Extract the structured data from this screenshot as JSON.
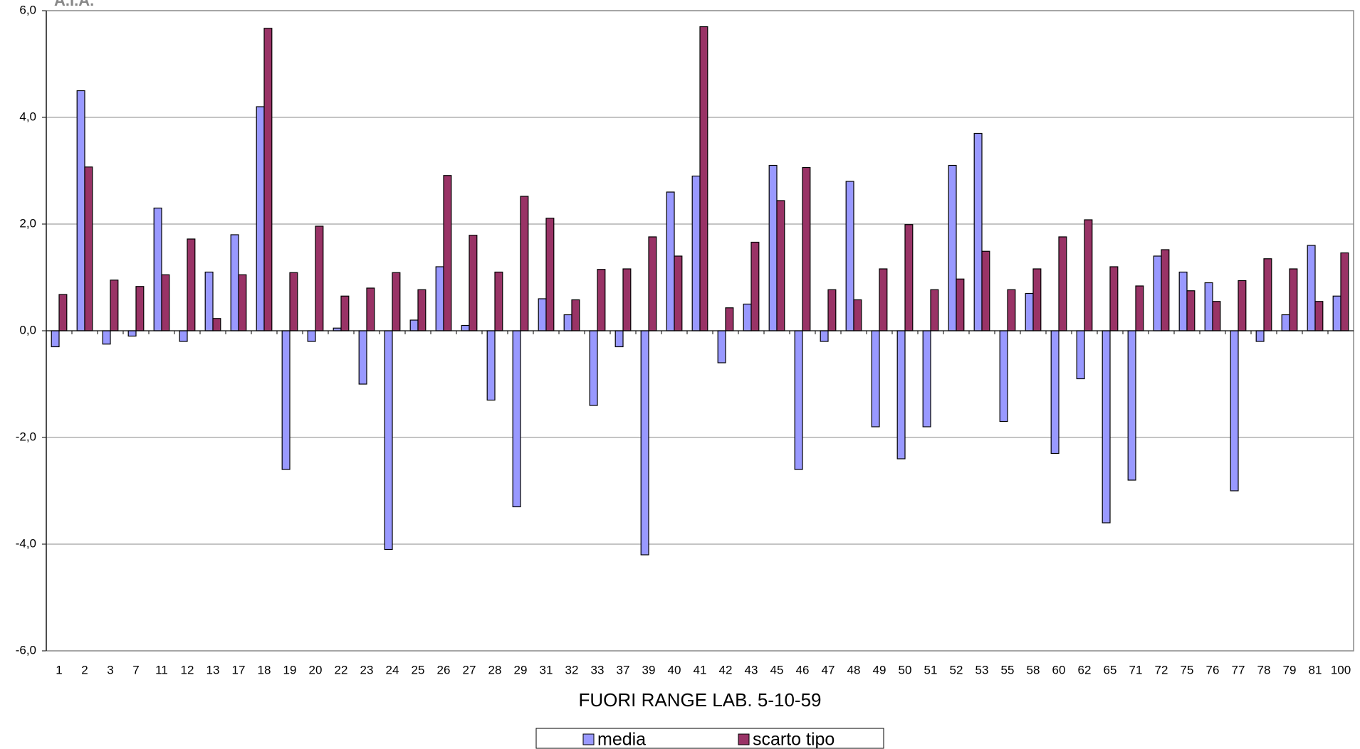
{
  "logo": "A.I.A.",
  "chart_data": {
    "type": "bar",
    "x_label": "FUORI RANGE LAB. 5-10-59",
    "categories": [
      "1",
      "2",
      "3",
      "7",
      "11",
      "12",
      "13",
      "17",
      "18",
      "19",
      "20",
      "22",
      "23",
      "24",
      "25",
      "26",
      "27",
      "28",
      "29",
      "31",
      "32",
      "33",
      "37",
      "39",
      "40",
      "41",
      "42",
      "43",
      "45",
      "46",
      "47",
      "48",
      "49",
      "50",
      "51",
      "52",
      "53",
      "55",
      "58",
      "60",
      "62",
      "65",
      "71",
      "72",
      "75",
      "76",
      "77",
      "78",
      "79",
      "81",
      "100"
    ],
    "series": [
      {
        "name": "media",
        "color": "#9999ff",
        "values": [
          -0.3,
          4.5,
          -0.25,
          -0.1,
          2.3,
          -0.2,
          1.1,
          1.8,
          4.2,
          -2.6,
          -0.2,
          0.05,
          -1.0,
          -4.1,
          0.2,
          1.2,
          0.1,
          -1.3,
          -3.3,
          0.6,
          0.3,
          -1.4,
          -0.3,
          -4.2,
          2.6,
          2.9,
          -0.6,
          0.5,
          3.1,
          -2.6,
          -0.2,
          2.8,
          -1.8,
          -2.4,
          -1.8,
          3.1,
          3.7,
          -1.7,
          0.7,
          -2.3,
          -0.9,
          -3.6,
          -2.8,
          1.4,
          1.1,
          0.9,
          -3.0,
          -0.2,
          0.3,
          1.6,
          0.65
        ]
      },
      {
        "name": "scarto tipo",
        "color": "#993366",
        "values": [
          0.68,
          3.07,
          0.95,
          0.83,
          1.05,
          1.72,
          0.23,
          1.05,
          5.67,
          1.09,
          1.96,
          0.65,
          0.8,
          1.09,
          0.77,
          2.91,
          1.79,
          1.1,
          2.52,
          2.11,
          0.58,
          1.15,
          1.16,
          1.76,
          1.4,
          5.7,
          0.43,
          1.66,
          2.44,
          3.06,
          0.77,
          0.58,
          1.16,
          1.99,
          0.77,
          0.97,
          1.49,
          0.77,
          1.16,
          1.76,
          2.08,
          1.2,
          0.84,
          1.52,
          0.75,
          0.55,
          0.94,
          1.35,
          1.16,
          0.55,
          1.46
        ]
      }
    ],
    "ylim": [
      -6,
      6
    ],
    "yticks": [
      {
        "value": -6,
        "label": "-6,0"
      },
      {
        "value": -4,
        "label": "-4,0"
      },
      {
        "value": -2,
        "label": "-2,0"
      },
      {
        "value": 0,
        "label": "0,0"
      },
      {
        "value": 2,
        "label": "2,0"
      },
      {
        "value": 4,
        "label": "4,0"
      },
      {
        "value": 6,
        "label": "6,0"
      }
    ],
    "grid": true,
    "legend": "bottom"
  }
}
